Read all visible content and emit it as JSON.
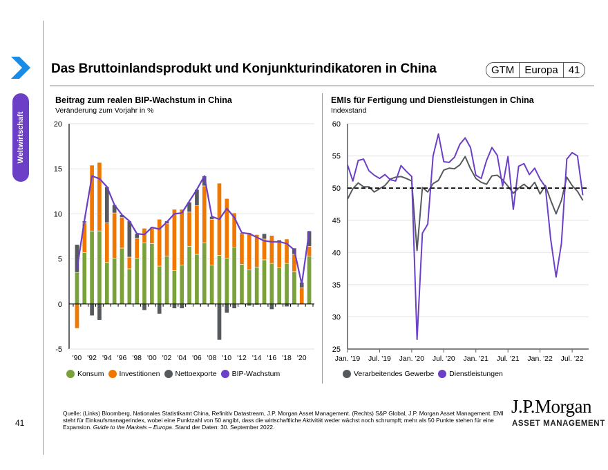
{
  "sidebar": {
    "section_label": "Weltwirtschaft",
    "page_number": "41",
    "chevron_icon": "chevron-right-icon"
  },
  "header": {
    "title": "Das Bruttoinlandsprodukt und Konjunkturindikatoren in China",
    "badge": [
      "GTM",
      "Europa",
      "41"
    ]
  },
  "colors": {
    "konsum": "#7ba23a",
    "investitionen": "#f07800",
    "nettoexporte": "#575a5d",
    "bip": "#6b3fc6",
    "dienstleistungen": "#6b3fc6",
    "verarbeitendes": "#575a5d",
    "accent_blue": "#1a8ce6"
  },
  "chart_data": [
    {
      "type": "bar",
      "stacked": true,
      "title": "Beitrag zum realen BIP-Wachstum in China",
      "subtitle": "Veränderung zum Vorjahr in %",
      "xlabel": "",
      "ylabel": "",
      "ylim": [
        -5,
        20
      ],
      "yticks": [
        20,
        15,
        10,
        5,
        0,
        -5
      ],
      "categories": [
        "1990",
        "1991",
        "1992",
        "1993",
        "1994",
        "1995",
        "1996",
        "1997",
        "1998",
        "1999",
        "2000",
        "2001",
        "2002",
        "2003",
        "2004",
        "2005",
        "2006",
        "2007",
        "2008",
        "2009",
        "2010",
        "2011",
        "2012",
        "2013",
        "2014",
        "2015",
        "2016",
        "2017",
        "2018",
        "2019",
        "2020",
        "2021"
      ],
      "xtick_labels": [
        "'90",
        "'92",
        "'94",
        "'96",
        "'98",
        "'00",
        "'02",
        "'04",
        "'06",
        "'08",
        "'10",
        "'12",
        "'14",
        "'16",
        "'18",
        "'20"
      ],
      "series": [
        {
          "name": "Konsum",
          "kind": "bar",
          "values": [
            3.5,
            5.7,
            8.1,
            8.1,
            4.6,
            5.1,
            6.2,
            3.9,
            5.1,
            6.8,
            6.7,
            4.2,
            5.3,
            3.7,
            4.3,
            6.4,
            5.5,
            6.8,
            4.3,
            5.4,
            5.1,
            6.3,
            4.4,
            3.8,
            4.1,
            4.9,
            4.5,
            4.0,
            4.5,
            3.6,
            0.0,
            5.3
          ]
        },
        {
          "name": "Investitionen",
          "kind": "bar",
          "values": [
            -2.7,
            3.3,
            7.3,
            7.6,
            4.4,
            5.0,
            3.4,
            1.3,
            2.2,
            1.6,
            1.7,
            5.2,
            3.6,
            6.8,
            6.2,
            3.8,
            5.4,
            6.3,
            5.1,
            8.0,
            6.6,
            3.8,
            3.4,
            4.1,
            3.6,
            2.3,
            3.1,
            2.9,
            2.7,
            1.9,
            1.8,
            1.1
          ]
        },
        {
          "name": "Nettoexporte",
          "kind": "bar",
          "values": [
            3.1,
            0.2,
            -1.3,
            -1.8,
            4.0,
            0.9,
            0.3,
            4.0,
            0.5,
            -0.7,
            0.1,
            -1.1,
            0.3,
            -0.5,
            -0.5,
            1.1,
            1.8,
            1.1,
            0.3,
            -4.0,
            -1.0,
            -0.5,
            0.1,
            -0.2,
            -0.1,
            0.6,
            -0.6,
            0.2,
            -0.3,
            0.7,
            0.6,
            1.7
          ]
        },
        {
          "name": "BIP-Wachstum",
          "kind": "line",
          "values": [
            3.9,
            9.3,
            14.2,
            13.9,
            13.0,
            11.0,
            9.9,
            9.2,
            7.8,
            7.7,
            8.5,
            8.3,
            9.1,
            10.0,
            10.1,
            11.4,
            12.7,
            14.2,
            9.7,
            9.4,
            10.6,
            9.6,
            7.9,
            7.8,
            7.4,
            7.0,
            6.9,
            6.9,
            6.7,
            6.0,
            2.2,
            8.1
          ]
        }
      ],
      "legend": [
        "Konsum",
        "Investitionen",
        "Nettoexporte",
        "BIP-Wachstum"
      ],
      "legend_position": "bottom",
      "grid": true
    },
    {
      "type": "line",
      "title": "EMIs für Fertigung und Dienstleistungen in China",
      "subtitle": "Indexstand",
      "xlabel": "",
      "ylabel": "",
      "ylim": [
        25,
        60
      ],
      "yticks": [
        60,
        55,
        50,
        45,
        40,
        35,
        30,
        25
      ],
      "xtick_labels": [
        "Jan. '19",
        "Jul. '19",
        "Jan. '20",
        "Jul. '20",
        "Jan. '21",
        "Jul. '21",
        "Jan. '22",
        "Jul. '22"
      ],
      "x_start": "2019-01",
      "x_end": "2022-09",
      "reference_line": 50,
      "series": [
        {
          "name": "Verarbeitendes Gewerbe",
          "values": [
            48.3,
            49.9,
            50.8,
            50.2,
            50.2,
            49.4,
            49.9,
            50.4,
            51.4,
            51.7,
            51.8,
            51.5,
            51.1,
            40.3,
            50.1,
            49.4,
            50.7,
            51.2,
            52.8,
            53.1,
            53.0,
            53.6,
            54.9,
            53.0,
            51.5,
            50.9,
            50.6,
            51.9,
            52.0,
            51.3,
            50.3,
            49.2,
            50.0,
            50.6,
            49.9,
            50.9,
            49.1,
            50.4,
            48.1,
            46.0,
            48.1,
            51.7,
            50.4,
            49.5,
            48.1
          ]
        },
        {
          "name": "Dienstleistungen",
          "values": [
            53.6,
            51.1,
            54.3,
            54.5,
            52.7,
            52.0,
            51.5,
            52.1,
            51.3,
            51.1,
            53.5,
            52.6,
            51.8,
            26.5,
            43.0,
            44.4,
            55.0,
            58.4,
            54.1,
            54.0,
            54.8,
            56.8,
            57.8,
            56.3,
            52.0,
            51.5,
            54.3,
            56.3,
            55.1,
            50.3,
            54.9,
            46.7,
            53.4,
            53.8,
            52.1,
            53.1,
            51.4,
            50.2,
            42.0,
            36.2,
            41.4,
            54.5,
            55.5,
            55.0,
            48.9
          ]
        }
      ],
      "legend": [
        "Verarbeitendes Gewerbe",
        "Dienstleistungen"
      ],
      "legend_position": "bottom",
      "grid": true
    }
  ],
  "footer": {
    "source_text": "Quelle: (Links) Bloomberg, Nationales Statistikamt China, Refinitiv Datastream, J.P. Morgan Asset Management. (Rechts) S&P Global, J.P. Morgan Asset Management. EMI steht für Einkaufsmanagerindex, wobei eine Punktzahl von 50 angibt, dass die wirtschaftliche Aktivität weder wächst noch schrumpft; mehr als 50 Punkte stehen für eine Expansion. ",
    "source_italic": "Guide to the Markets – Europa",
    "source_tail": ". Stand der Daten: 30. September 2022.",
    "logo_line1": "J.P.Morgan",
    "logo_line2": "ASSET MANAGEMENT"
  }
}
